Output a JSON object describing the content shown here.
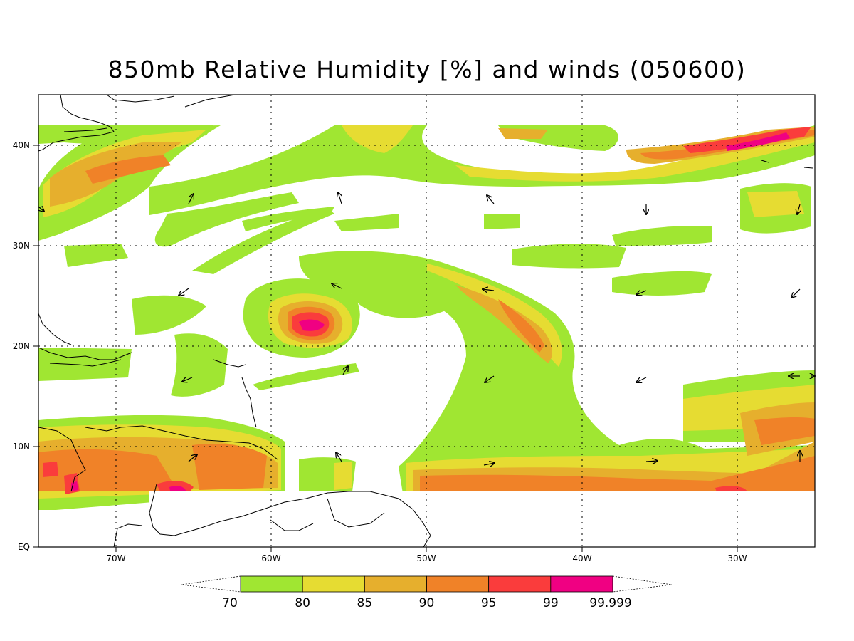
{
  "title": "850mb Relative Humidity [%] and winds (050600)",
  "y_axis": {
    "ticks": [
      "EQ",
      "10N",
      "20N",
      "30N",
      "40N"
    ]
  },
  "x_axis": {
    "ticks": [
      "70W",
      "60W",
      "50W",
      "40W",
      "30W"
    ]
  },
  "colorbar": {
    "labels": [
      "70",
      "80",
      "85",
      "90",
      "95",
      "99",
      "99.999"
    ],
    "colors": [
      "#a0e632",
      "#e6dc32",
      "#e6af2d",
      "#f08228",
      "#fa3c3c",
      "#f00082"
    ]
  },
  "map_extent": {
    "lon_range": [
      "75W",
      "25W"
    ],
    "lat_range": [
      "EQ",
      "45N"
    ]
  },
  "feature": "Tropical cyclone circulation near 22N 57W"
}
